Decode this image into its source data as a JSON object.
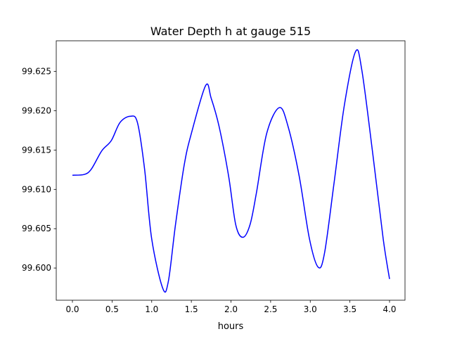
{
  "chart_data": {
    "type": "line",
    "title": "Water Depth h at gauge 515",
    "xlabel": "hours",
    "ylabel": "",
    "xlim": [
      -0.204,
      4.195
    ],
    "ylim": [
      99.5959,
      99.6289
    ],
    "xticks": [
      0.0,
      0.5,
      1.0,
      1.5,
      2.0,
      2.5,
      3.0,
      3.5,
      4.0
    ],
    "xtick_labels": [
      "0.0",
      "0.5",
      "1.0",
      "1.5",
      "2.0",
      "2.5",
      "3.0",
      "3.5",
      "4.0"
    ],
    "yticks": [
      99.6,
      99.605,
      99.61,
      99.615,
      99.62,
      99.625
    ],
    "ytick_labels": [
      "99.600",
      "99.605",
      "99.610",
      "99.615",
      "99.620",
      "99.625"
    ],
    "grid": false,
    "series": [
      {
        "name": "h",
        "color": "#0000ff",
        "x": [
          0.0,
          0.15,
          0.24,
          0.37,
          0.49,
          0.6,
          0.73,
          0.82,
          0.91,
          1.0,
          1.14,
          1.21,
          1.3,
          1.41,
          1.5,
          1.68,
          1.75,
          1.85,
          1.97,
          2.06,
          2.15,
          2.24,
          2.32,
          2.45,
          2.61,
          2.72,
          2.86,
          2.99,
          3.1,
          3.18,
          3.3,
          3.43,
          3.57,
          3.65,
          3.79,
          3.92,
          4.0
        ],
        "y": [
          99.6118,
          99.6119,
          99.6126,
          99.6149,
          99.6162,
          99.6185,
          99.6193,
          99.6185,
          99.6126,
          99.6037,
          99.5974,
          99.5983,
          99.6055,
          99.6131,
          99.6171,
          99.6232,
          99.6216,
          99.618,
          99.6117,
          99.6055,
          99.6039,
          99.6055,
          99.6095,
          99.6171,
          99.6204,
          99.618,
          99.6117,
          99.6037,
          99.6001,
          99.6019,
          99.6108,
          99.6207,
          99.6275,
          99.6252,
          99.6144,
          99.6037,
          99.5986
        ]
      }
    ]
  }
}
